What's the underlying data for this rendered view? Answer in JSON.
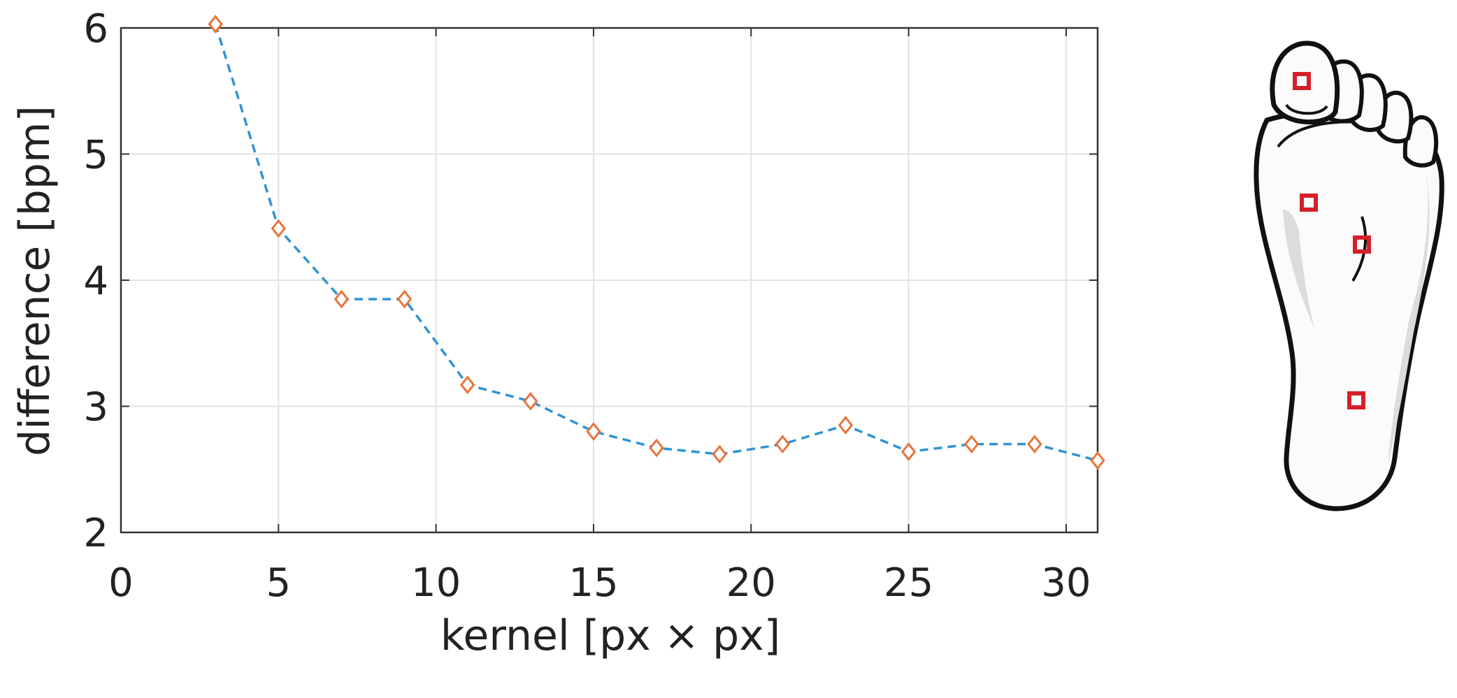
{
  "chart_data": {
    "type": "line",
    "xlabel": "kernel [px × px]",
    "ylabel": "difference [bpm]",
    "xlim": [
      0,
      31
    ],
    "ylim": [
      2,
      6
    ],
    "xticks": [
      0,
      5,
      10,
      15,
      20,
      25,
      30
    ],
    "yticks": [
      2,
      3,
      4,
      5,
      6
    ],
    "xtick_labels": [
      "0",
      "5",
      "10",
      "15",
      "20",
      "25",
      "30"
    ],
    "ytick_labels": [
      "2",
      "3",
      "4",
      "5",
      "6"
    ],
    "grid": true,
    "x": [
      3,
      5,
      7,
      9,
      11,
      13,
      15,
      17,
      19,
      21,
      23,
      25,
      27,
      29,
      31
    ],
    "series": [
      {
        "values": [
          6.03,
          4.41,
          3.85,
          3.85,
          3.17,
          3.04,
          2.8,
          2.67,
          2.62,
          2.7,
          2.85,
          2.64,
          2.7,
          2.7,
          2.57
        ],
        "line_style": "dashed",
        "line_color": "#2f93d3",
        "marker": "diamond",
        "marker_color": "#e8743b"
      }
    ]
  },
  "inset": {
    "subject": "foot-sole",
    "marker_color": "#d51f2b"
  }
}
